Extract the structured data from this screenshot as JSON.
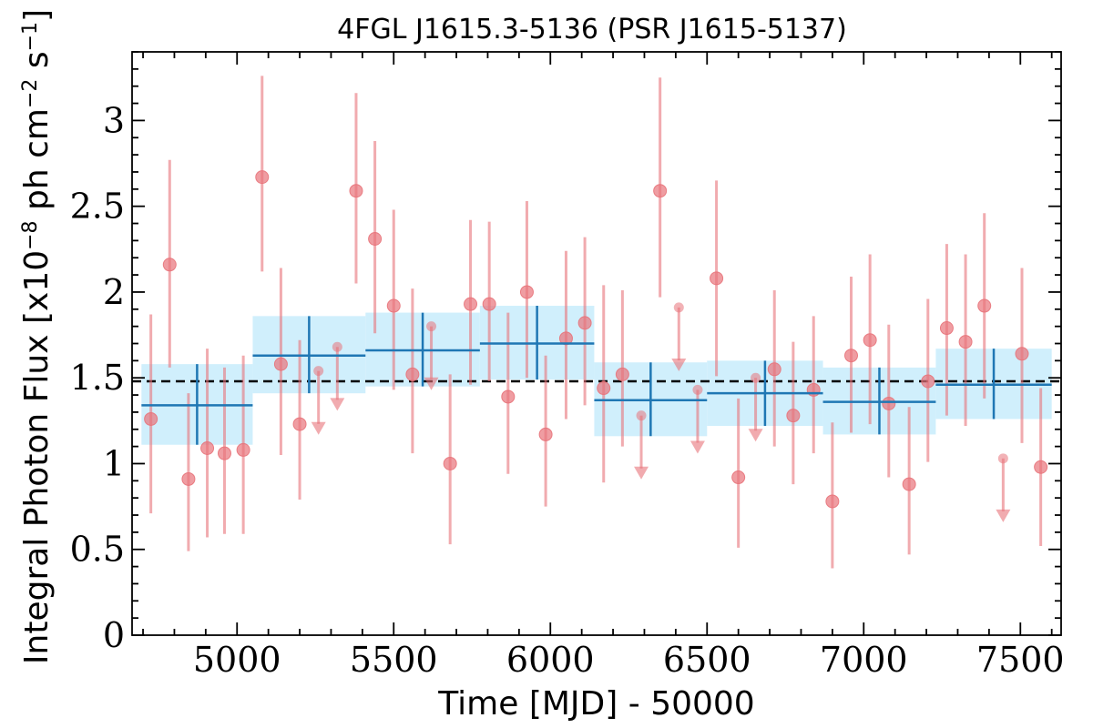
{
  "chart_data": {
    "type": "scatter",
    "title": "4FGL J1615.3-5136 (PSR J1615-5137)",
    "xlabel": "Time [MJD] - 50000",
    "ylabel": "Integral Photon Flux [x10",
    "ylabel_exp1": "−8",
    "ylabel_mid": " ph cm",
    "ylabel_exp2": "−2",
    "ylabel_mid2": " s",
    "ylabel_exp3": "−1",
    "ylabel_end": "]",
    "xlim": [
      4665,
      7630
    ],
    "ylim": [
      0,
      3.4
    ],
    "x_ticks": [
      5000,
      5500,
      6000,
      6500,
      7000,
      7500
    ],
    "x_tick_labels": [
      "5000",
      "5500",
      "6000",
      "6500",
      "7000",
      "7500"
    ],
    "y_ticks": [
      0,
      0.5,
      1,
      1.5,
      2,
      2.5,
      3
    ],
    "y_tick_labels": [
      "0",
      "0.5",
      "1",
      "1.5",
      "2",
      "2.5",
      "3"
    ],
    "mean_flux": 1.48,
    "colors": {
      "points": "#e8737a",
      "bins": "#1f77b4",
      "bin_band": "#cdeefc",
      "mean_line": "#000000"
    },
    "series": [
      {
        "type": "points",
        "values": [
          {
            "x": 4725,
            "y": 1.26,
            "lo": 0.71,
            "hi": 1.87
          },
          {
            "x": 4785,
            "y": 2.16,
            "lo": 1.56,
            "hi": 2.77
          },
          {
            "x": 4845,
            "y": 0.91,
            "lo": 0.49,
            "hi": 1.41
          },
          {
            "x": 4905,
            "y": 1.09,
            "lo": 0.57,
            "hi": 1.67
          },
          {
            "x": 4960,
            "y": 1.06,
            "lo": 0.59,
            "hi": 1.56
          },
          {
            "x": 5020,
            "y": 1.08,
            "lo": 0.59,
            "hi": 1.63
          },
          {
            "x": 5080,
            "y": 2.67,
            "lo": 2.12,
            "hi": 3.26
          },
          {
            "x": 5140,
            "y": 1.58,
            "lo": 1.05,
            "hi": 2.14
          },
          {
            "x": 5200,
            "y": 1.23,
            "lo": 0.79,
            "hi": 1.72
          },
          {
            "x": 5380,
            "y": 2.59,
            "lo": 2.05,
            "hi": 3.16
          },
          {
            "x": 5440,
            "y": 2.31,
            "lo": 1.76,
            "hi": 2.88
          },
          {
            "x": 5500,
            "y": 1.92,
            "lo": 1.43,
            "hi": 2.48
          },
          {
            "x": 5560,
            "y": 1.52,
            "lo": 1.06,
            "hi": 2.02
          },
          {
            "x": 5680,
            "y": 1.0,
            "lo": 0.53,
            "hi": 1.52
          },
          {
            "x": 5745,
            "y": 1.93,
            "lo": 1.46,
            "hi": 2.42
          },
          {
            "x": 5805,
            "y": 1.93,
            "lo": 1.48,
            "hi": 2.41
          },
          {
            "x": 5865,
            "y": 1.39,
            "lo": 0.94,
            "hi": 1.88
          },
          {
            "x": 5925,
            "y": 2.0,
            "lo": 1.5,
            "hi": 2.53
          },
          {
            "x": 5985,
            "y": 1.17,
            "lo": 0.75,
            "hi": 1.63
          },
          {
            "x": 6050,
            "y": 1.73,
            "lo": 1.26,
            "hi": 2.24
          },
          {
            "x": 6110,
            "y": 1.82,
            "lo": 1.34,
            "hi": 2.32
          },
          {
            "x": 6170,
            "y": 1.44,
            "lo": 0.89,
            "hi": 2.04
          },
          {
            "x": 6230,
            "y": 1.52,
            "lo": 1.1,
            "hi": 2.01
          },
          {
            "x": 6350,
            "y": 2.59,
            "lo": 1.97,
            "hi": 3.25
          },
          {
            "x": 6530,
            "y": 2.08,
            "lo": 1.51,
            "hi": 2.65
          },
          {
            "x": 6600,
            "y": 0.92,
            "lo": 0.51,
            "hi": 1.38
          },
          {
            "x": 6715,
            "y": 1.55,
            "lo": 1.1,
            "hi": 2.01
          },
          {
            "x": 6775,
            "y": 1.28,
            "lo": 0.88,
            "hi": 1.71
          },
          {
            "x": 6840,
            "y": 1.43,
            "lo": 1.06,
            "hi": 1.86
          },
          {
            "x": 6900,
            "y": 0.78,
            "lo": 0.39,
            "hi": 1.24
          },
          {
            "x": 6960,
            "y": 1.63,
            "lo": 1.18,
            "hi": 2.09
          },
          {
            "x": 7020,
            "y": 1.72,
            "lo": 1.23,
            "hi": 2.22
          },
          {
            "x": 7080,
            "y": 1.35,
            "lo": 0.92,
            "hi": 1.81
          },
          {
            "x": 7145,
            "y": 0.88,
            "lo": 0.47,
            "hi": 1.33
          },
          {
            "x": 7205,
            "y": 1.48,
            "lo": 1.01,
            "hi": 1.96
          },
          {
            "x": 7265,
            "y": 1.79,
            "lo": 1.28,
            "hi": 2.28
          },
          {
            "x": 7325,
            "y": 1.71,
            "lo": 1.22,
            "hi": 2.22
          },
          {
            "x": 7385,
            "y": 1.92,
            "lo": 1.38,
            "hi": 2.46
          },
          {
            "x": 7505,
            "y": 1.64,
            "lo": 1.12,
            "hi": 2.14
          },
          {
            "x": 7565,
            "y": 0.98,
            "lo": 0.52,
            "hi": 1.44
          }
        ]
      },
      {
        "type": "upper_limits",
        "values": [
          {
            "x": 5260,
            "y": 1.54,
            "arrow_to": 1.2
          },
          {
            "x": 5320,
            "y": 1.68,
            "arrow_to": 1.34
          },
          {
            "x": 5620,
            "y": 1.8,
            "arrow_to": 1.46
          },
          {
            "x": 6290,
            "y": 1.28,
            "arrow_to": 0.94
          },
          {
            "x": 6410,
            "y": 1.91,
            "arrow_to": 1.57
          },
          {
            "x": 6470,
            "y": 1.43,
            "arrow_to": 1.09
          },
          {
            "x": 6655,
            "y": 1.5,
            "arrow_to": 1.16
          },
          {
            "x": 7445,
            "y": 1.03,
            "arrow_to": 0.69
          }
        ]
      },
      {
        "type": "bins",
        "values": [
          {
            "x0": 4695,
            "x1": 5050,
            "y": 1.34,
            "lo": 1.11,
            "hi": 1.58
          },
          {
            "x0": 5050,
            "x1": 5410,
            "y": 1.63,
            "lo": 1.41,
            "hi": 1.86
          },
          {
            "x0": 5410,
            "x1": 5775,
            "y": 1.66,
            "lo": 1.45,
            "hi": 1.88
          },
          {
            "x0": 5775,
            "x1": 6140,
            "y": 1.7,
            "lo": 1.49,
            "hi": 1.92
          },
          {
            "x0": 6140,
            "x1": 6500,
            "y": 1.37,
            "lo": 1.16,
            "hi": 1.59
          },
          {
            "x0": 6500,
            "x1": 6870,
            "y": 1.41,
            "lo": 1.22,
            "hi": 1.6
          },
          {
            "x0": 6870,
            "x1": 7230,
            "y": 1.36,
            "lo": 1.17,
            "hi": 1.56
          },
          {
            "x0": 7230,
            "x1": 7600,
            "y": 1.46,
            "lo": 1.26,
            "hi": 1.67
          }
        ]
      }
    ]
  }
}
